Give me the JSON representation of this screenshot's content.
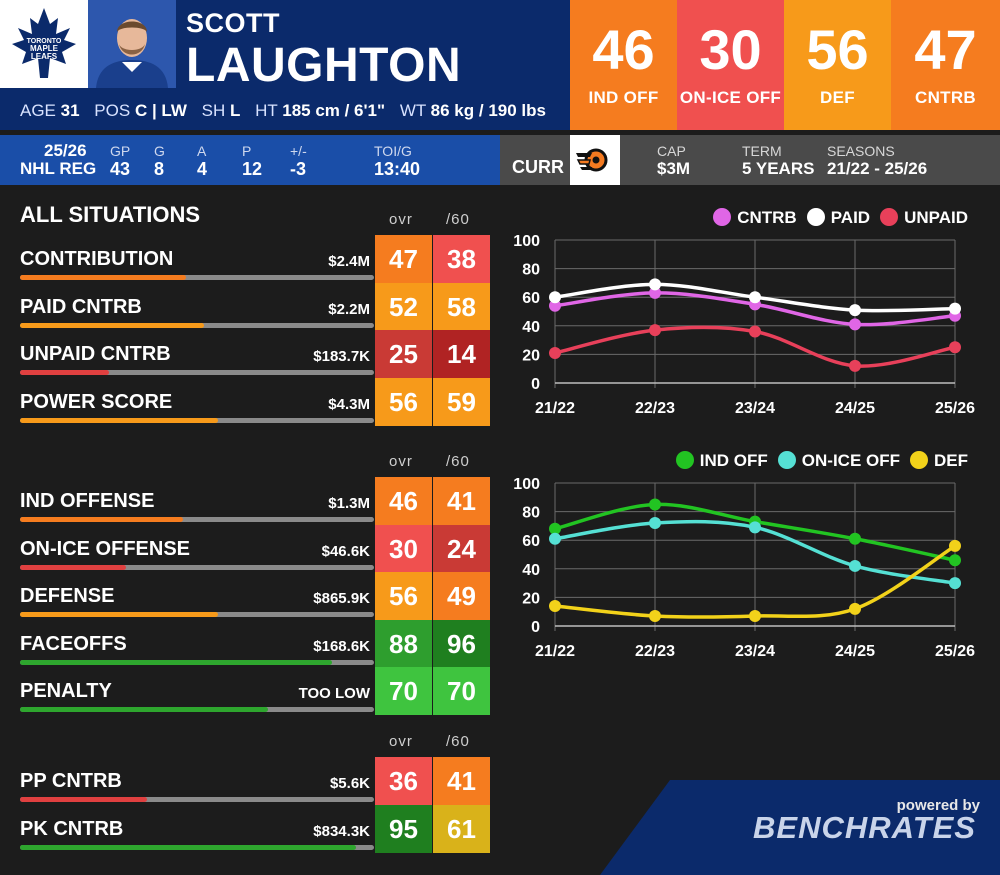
{
  "player": {
    "first_name": "SCOTT",
    "last_name": "LAUGHTON",
    "team_logo_text": [
      "TORONTO",
      "MAPLE",
      "LEAFS"
    ],
    "age_label": "AGE",
    "age": "31",
    "pos_label": "POS",
    "pos": "C | LW",
    "sh_label": "SH",
    "sh": "L",
    "ht_label": "HT",
    "ht": "185 cm / 6'1\"",
    "wt_label": "WT",
    "wt": "86 kg / 190 lbs"
  },
  "scores": [
    {
      "value": "46",
      "label": "IND OFF",
      "color": "#f57c1f"
    },
    {
      "value": "30",
      "label": "ON-ICE OFF",
      "color": "#f0504f"
    },
    {
      "value": "56",
      "label": "DEF",
      "color": "#f79a1a"
    },
    {
      "value": "47",
      "label": "CNTRB",
      "color": "#f57c1f"
    }
  ],
  "season": {
    "year": "25/26",
    "league": "NHL REG",
    "gp_label": "GP",
    "gp": "43",
    "g_label": "G",
    "g": "8",
    "a_label": "A",
    "a": "4",
    "p_label": "P",
    "p": "12",
    "pm_label": "+/-",
    "pm": "-3",
    "toi_label": "TOI/G",
    "toi": "13:40"
  },
  "contract": {
    "curr_label": "CURR",
    "team_icon": "flyers-logo-icon",
    "cap_label": "CAP",
    "cap": "$3M",
    "term_label": "TERM",
    "term": "5 YEARS",
    "seasons_label": "SEASONS",
    "seasons": "21/22 - 25/26"
  },
  "sections": [
    {
      "title": "ALL SITUATIONS",
      "col_ovr": "ovr",
      "col_per60": "/60",
      "rows": [
        {
          "label": "CONTRIBUTION",
          "money": "$2.4M",
          "ovr": "47",
          "per60": "38",
          "ovr_color": "#f57c1f",
          "per60_color": "#f0504f",
          "bar_pct": 47,
          "bar_color": "#f57c1f"
        },
        {
          "label": "PAID CNTRB",
          "money": "$2.2M",
          "ovr": "52",
          "per60": "58",
          "ovr_color": "#f79a1a",
          "per60_color": "#f79a1a",
          "bar_pct": 52,
          "bar_color": "#f79a1a"
        },
        {
          "label": "UNPAID CNTRB",
          "money": "$183.7K",
          "ovr": "25",
          "per60": "14",
          "ovr_color": "#c93a35",
          "per60_color": "#b02323",
          "bar_pct": 25,
          "bar_color": "#e04040"
        },
        {
          "label": "POWER SCORE",
          "money": "$4.3M",
          "ovr": "56",
          "per60": "59",
          "ovr_color": "#f79a1a",
          "per60_color": "#f79a1a",
          "bar_pct": 56,
          "bar_color": "#f79a1a"
        }
      ]
    },
    {
      "title": "",
      "col_ovr": "ovr",
      "col_per60": "/60",
      "rows": [
        {
          "label": "IND OFFENSE",
          "money": "$1.3M",
          "ovr": "46",
          "per60": "41",
          "ovr_color": "#f57c1f",
          "per60_color": "#f57c1f",
          "bar_pct": 46,
          "bar_color": "#f57c1f"
        },
        {
          "label": "ON-ICE OFFENSE",
          "money": "$46.6K",
          "ovr": "30",
          "per60": "24",
          "ovr_color": "#f0504f",
          "per60_color": "#c93a35",
          "bar_pct": 30,
          "bar_color": "#e04040"
        },
        {
          "label": "DEFENSE",
          "money": "$865.9K",
          "ovr": "56",
          "per60": "49",
          "ovr_color": "#f79a1a",
          "per60_color": "#f57c1f",
          "bar_pct": 56,
          "bar_color": "#f79a1a"
        },
        {
          "label": "FACEOFFS",
          "money": "$168.6K",
          "ovr": "88",
          "per60": "96",
          "ovr_color": "#2e9e2e",
          "per60_color": "#1f7f1f",
          "bar_pct": 88,
          "bar_color": "#2ea62e"
        },
        {
          "label": "PENALTY",
          "money": "TOO LOW",
          "ovr": "70",
          "per60": "70",
          "ovr_color": "#3fc43f",
          "per60_color": "#3fc43f",
          "bar_pct": 70,
          "bar_color": "#2ea62e"
        }
      ]
    },
    {
      "title": "",
      "col_ovr": "ovr",
      "col_per60": "/60",
      "rows": [
        {
          "label": "PP CNTRB",
          "money": "$5.6K",
          "ovr": "36",
          "per60": "41",
          "ovr_color": "#f0504f",
          "per60_color": "#f57c1f",
          "bar_pct": 36,
          "bar_color": "#e04040"
        },
        {
          "label": "PK CNTRB",
          "money": "$834.3K",
          "ovr": "95",
          "per60": "61",
          "ovr_color": "#1f7f1f",
          "per60_color": "#d9b21a",
          "bar_pct": 95,
          "bar_color": "#2ea62e"
        }
      ]
    }
  ],
  "chart_data": [
    {
      "type": "line",
      "x": [
        "21/22",
        "22/23",
        "23/24",
        "24/25",
        "25/26"
      ],
      "ylim": [
        0,
        100
      ],
      "yticks": [
        "0",
        "20",
        "40",
        "60",
        "80",
        "100"
      ],
      "legend": "top-right",
      "grid": true,
      "series": [
        {
          "name": "CNTRB",
          "color": "#e066e6",
          "values": [
            54,
            63,
            55,
            41,
            47
          ]
        },
        {
          "name": "PAID",
          "color": "#ffffff",
          "values": [
            60,
            69,
            60,
            51,
            52
          ]
        },
        {
          "name": "UNPAID",
          "color": "#e8405a",
          "values": [
            21,
            37,
            36,
            12,
            25
          ]
        }
      ]
    },
    {
      "type": "line",
      "x": [
        "21/22",
        "22/23",
        "23/24",
        "24/25",
        "25/26"
      ],
      "ylim": [
        0,
        100
      ],
      "yticks": [
        "0",
        "20",
        "40",
        "60",
        "80",
        "100"
      ],
      "legend": "top-right",
      "grid": true,
      "series": [
        {
          "name": "IND OFF",
          "color": "#22c422",
          "values": [
            68,
            85,
            73,
            61,
            46
          ]
        },
        {
          "name": "ON-ICE OFF",
          "color": "#55e0d4",
          "values": [
            61,
            72,
            69,
            42,
            30
          ]
        },
        {
          "name": "DEF",
          "color": "#f2d21a",
          "values": [
            14,
            7,
            7,
            12,
            56
          ]
        }
      ]
    }
  ],
  "brand": {
    "powered_by": "powered by",
    "name": "BENCHRATES"
  }
}
